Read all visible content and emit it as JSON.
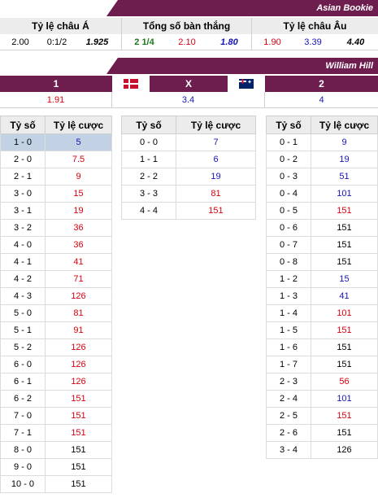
{
  "asian_bookie": {
    "title": "Asian Bookie",
    "headers": [
      "Tỷ lệ châu Á",
      "Tổng số bàn thắng",
      "Tỷ lệ châu Âu"
    ],
    "asian": [
      "2.00",
      "0:1/2",
      "1.925"
    ],
    "total": [
      "2 1/4",
      "2.10",
      "1.80"
    ],
    "euro": [
      "1.90",
      "3.39",
      "4.40"
    ]
  },
  "william_hill": {
    "title": "William Hill",
    "labels": [
      "1",
      "X",
      "2"
    ],
    "flag_home": "denmark-flag",
    "flag_away": "australia-flag",
    "odds": [
      "1.91",
      "3.4",
      "4"
    ]
  },
  "score_headers": [
    "Tỷ số",
    "Tỷ lệ cược"
  ],
  "home_wins": [
    {
      "score": "1 - 0",
      "odds": "5"
    },
    {
      "score": "2 - 0",
      "odds": "7.5"
    },
    {
      "score": "2 - 1",
      "odds": "9"
    },
    {
      "score": "3 - 0",
      "odds": "15"
    },
    {
      "score": "3 - 1",
      "odds": "19"
    },
    {
      "score": "3 - 2",
      "odds": "36"
    },
    {
      "score": "4 - 0",
      "odds": "36"
    },
    {
      "score": "4 - 1",
      "odds": "41"
    },
    {
      "score": "4 - 2",
      "odds": "71"
    },
    {
      "score": "4 - 3",
      "odds": "126"
    },
    {
      "score": "5 - 0",
      "odds": "81"
    },
    {
      "score": "5 - 1",
      "odds": "91"
    },
    {
      "score": "5 - 2",
      "odds": "126"
    },
    {
      "score": "6 - 0",
      "odds": "126"
    },
    {
      "score": "6 - 1",
      "odds": "126"
    },
    {
      "score": "6 - 2",
      "odds": "151"
    },
    {
      "score": "7 - 0",
      "odds": "151"
    },
    {
      "score": "7 - 1",
      "odds": "151"
    },
    {
      "score": "8 - 0",
      "odds": "151"
    },
    {
      "score": "9 - 0",
      "odds": "151"
    },
    {
      "score": "10 - 0",
      "odds": "151"
    }
  ],
  "draws": [
    {
      "score": "0 - 0",
      "odds": "7"
    },
    {
      "score": "1 - 1",
      "odds": "6"
    },
    {
      "score": "2 - 2",
      "odds": "19"
    },
    {
      "score": "3 - 3",
      "odds": "81"
    },
    {
      "score": "4 - 4",
      "odds": "151"
    }
  ],
  "away_wins": [
    {
      "score": "0 - 1",
      "odds": "9"
    },
    {
      "score": "0 - 2",
      "odds": "19"
    },
    {
      "score": "0 - 3",
      "odds": "51"
    },
    {
      "score": "0 - 4",
      "odds": "101"
    },
    {
      "score": "0 - 5",
      "odds": "151"
    },
    {
      "score": "0 - 6",
      "odds": "151"
    },
    {
      "score": "0 - 7",
      "odds": "151"
    },
    {
      "score": "0 - 8",
      "odds": "151"
    },
    {
      "score": "1 - 2",
      "odds": "15"
    },
    {
      "score": "1 - 3",
      "odds": "41"
    },
    {
      "score": "1 - 4",
      "odds": "101"
    },
    {
      "score": "1 - 5",
      "odds": "151"
    },
    {
      "score": "1 - 6",
      "odds": "151"
    },
    {
      "score": "1 - 7",
      "odds": "151"
    },
    {
      "score": "2 - 3",
      "odds": "56"
    },
    {
      "score": "2 - 4",
      "odds": "101"
    },
    {
      "score": "2 - 5",
      "odds": "151"
    },
    {
      "score": "2 - 6",
      "odds": "151"
    },
    {
      "score": "3 - 4",
      "odds": "126"
    }
  ]
}
